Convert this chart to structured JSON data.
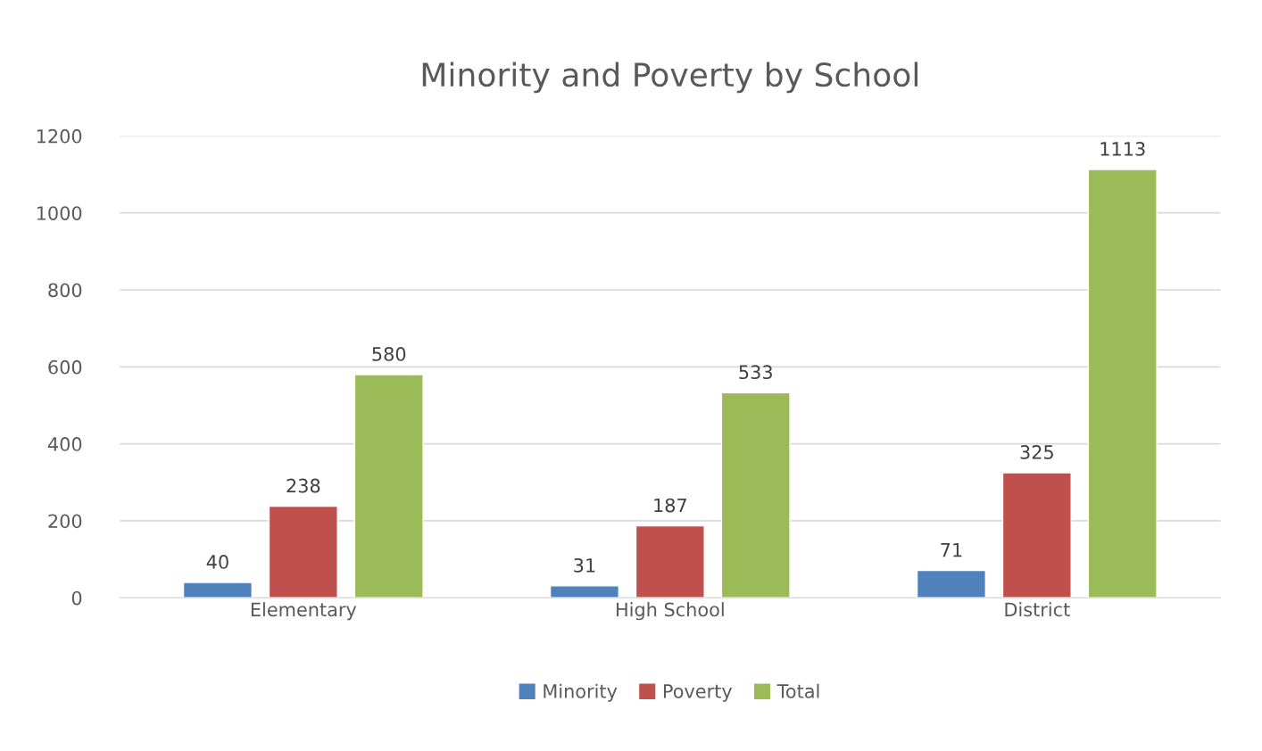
{
  "chart_data": {
    "type": "bar",
    "title": "Minority and Poverty by School",
    "categories": [
      "Elementary",
      "High School",
      "District"
    ],
    "series": [
      {
        "name": "Minority",
        "color": "#4f81bd",
        "values": [
          40,
          31,
          71
        ]
      },
      {
        "name": "Poverty",
        "color": "#c0504d",
        "values": [
          238,
          187,
          325
        ]
      },
      {
        "name": "Total",
        "color": "#9bbb59",
        "values": [
          580,
          533,
          1113
        ]
      }
    ],
    "ylim": [
      0,
      1200
    ],
    "yticks": [
      0,
      200,
      400,
      600,
      800,
      1000,
      1200
    ],
    "grid": "y",
    "legend": "bottom",
    "data_labels": true
  }
}
